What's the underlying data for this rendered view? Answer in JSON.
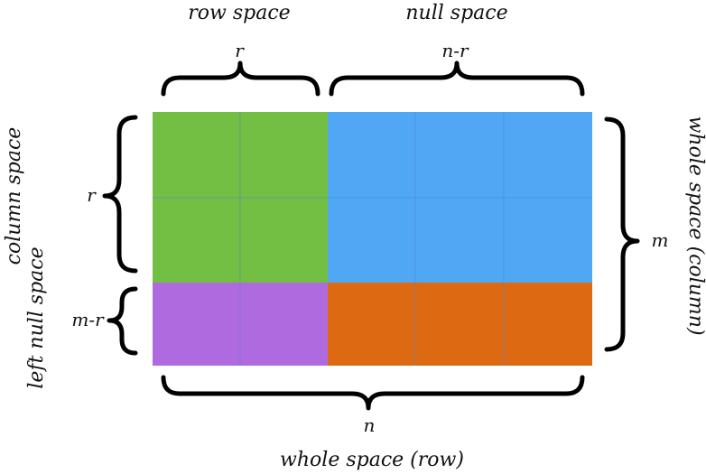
{
  "labels": {
    "row_space": "row space",
    "null_space": "null space",
    "r_top": "r",
    "n_minus_r": "n-r",
    "column_space": "column space",
    "left_null_space": "left null space",
    "r_left": "r",
    "m_minus_r": "m-r",
    "whole_space_column": "whole space (column)",
    "m": "m",
    "n": "n",
    "whole_space_row": "whole space (row)"
  },
  "blocks": {
    "row_space_block": {
      "color": "#72bf44"
    },
    "null_space_block": {
      "color": "#50a7f4"
    },
    "left_null_space_block": {
      "color": "#b06ae0"
    },
    "cokernel_block": {
      "color": "#dd6a12"
    }
  },
  "grid": {
    "rank_columns": 2,
    "nullity_columns": 3,
    "rank_rows": 2,
    "left_nullity_rows": 1
  }
}
